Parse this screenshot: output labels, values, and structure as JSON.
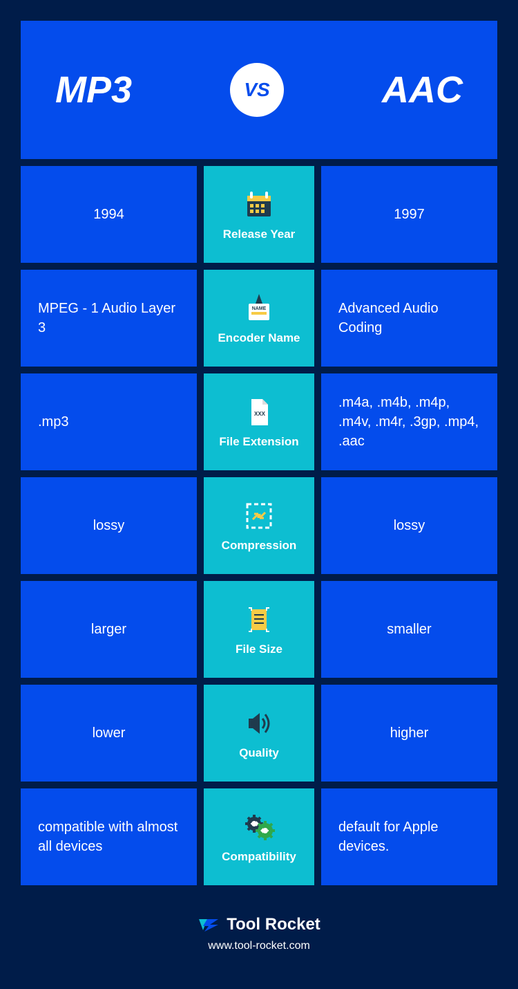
{
  "header": {
    "left": "MP3",
    "right": "AAC",
    "vs": "VS"
  },
  "colors": {
    "page_bg": "#001c49",
    "card_bg": "#044cec",
    "mid_bg": "#0dbed1",
    "text": "#ffffff",
    "vs_bg": "#ffffff",
    "vs_text": "#044cec",
    "icon_accent1": "#f7cb46",
    "icon_accent2": "#2fa84b",
    "icon_dark": "#1f3b4d"
  },
  "rows": [
    {
      "left": "1994",
      "label": "Release Year",
      "right": "1997",
      "icon": "calendar",
      "center": true
    },
    {
      "left": "MPEG - 1 Audio Layer 3",
      "label": "Encoder Name",
      "right": "Advanced Audio Coding",
      "icon": "name-badge"
    },
    {
      "left": ".mp3",
      "label": "File Extension",
      "right": ".m4a, .m4b, .m4p, .m4v, .m4r, .3gp, .mp4, .aac",
      "icon": "file"
    },
    {
      "left": "lossy",
      "label": "Compression",
      "right": "lossy",
      "icon": "compress",
      "center": true
    },
    {
      "left": "larger",
      "label": "File Size",
      "right": "smaller",
      "icon": "filesize",
      "center": true
    },
    {
      "left": "lower",
      "label": "Quality",
      "right": "higher",
      "icon": "speaker",
      "center": true
    },
    {
      "left": "compatible with almost all devices",
      "label": "Compatibility",
      "right": "default for Apple devices.",
      "icon": "gears"
    }
  ],
  "footer": {
    "brand": "Tool Rocket",
    "url": "www.tool-rocket.com"
  }
}
